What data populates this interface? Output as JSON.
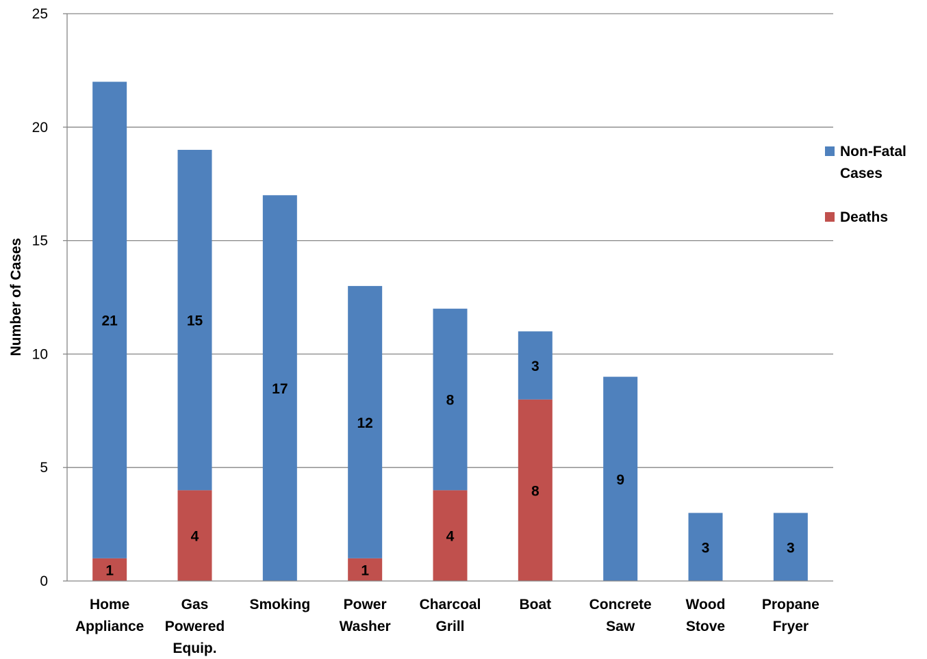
{
  "chart_data": {
    "type": "bar",
    "stacked": true,
    "categories": [
      [
        "Home",
        "Appliance"
      ],
      [
        "Gas",
        "Powered",
        "Equip."
      ],
      [
        "Smoking"
      ],
      [
        "Power",
        "Washer"
      ],
      [
        "Charcoal",
        "Grill"
      ],
      [
        "Boat"
      ],
      [
        "Concrete",
        "Saw"
      ],
      [
        "Wood",
        "Stove"
      ],
      [
        "Propane",
        "Fryer"
      ]
    ],
    "series": [
      {
        "name": "Deaths",
        "values": [
          1,
          4,
          0,
          1,
          4,
          8,
          0,
          0,
          0
        ],
        "color": "#C0504D"
      },
      {
        "name": "Non-Fatal Cases",
        "values": [
          21,
          15,
          17,
          12,
          8,
          3,
          9,
          3,
          3
        ],
        "color": "#4F81BD"
      }
    ],
    "legend": [
      {
        "label": [
          "Non-Fatal",
          "Cases"
        ],
        "color": "#4F81BD"
      },
      {
        "label": [
          "Deaths"
        ],
        "color": "#C0504D"
      }
    ],
    "ylabel": "Number of Cases",
    "xlabel": "",
    "ylim": [
      0,
      25
    ],
    "yticks": [
      "0",
      "5",
      "10",
      "15",
      "20",
      "25"
    ],
    "grid": true,
    "legend_position": "right"
  }
}
